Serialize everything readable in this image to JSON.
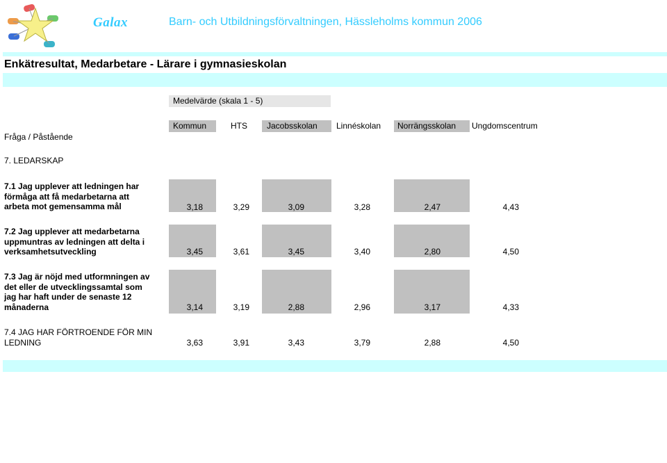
{
  "header": {
    "brand": "Galax",
    "org": "Barn- och Utbildningsförvaltningen, Hässleholms kommun 2006"
  },
  "title": "Enkätresultat, Medarbetare - Lärare i gymnasieskolan",
  "table": {
    "group_label": "Medelvärde (skala 1 - 5)",
    "row_header": "Fråga / Påstående",
    "columns": [
      "Kommun",
      "HTS",
      "Jacobsskolan",
      "Linnéskolan",
      "Norrängsskolan",
      "Ungdomscentrum"
    ],
    "section": "7. LEDARSKAP",
    "rows": [
      {
        "question": "7.1 Jag upplever att ledningen har\nförmåga att få medarbetarna att\narbeta mot gemensamma mål",
        "values": [
          "3,18",
          "3,29",
          "3,09",
          "3,28",
          "2,47",
          "4,43"
        ]
      },
      {
        "question": "7.2 Jag upplever att medarbetarna\nuppmuntras av ledningen att delta i\nverksamhetsutveckling",
        "values": [
          "3,45",
          "3,61",
          "3,45",
          "3,40",
          "2,80",
          "4,50"
        ]
      },
      {
        "question": "7.3 Jag är nöjd med utformningen av\ndet eller de utvecklingssamtal som\njag har haft under de senaste 12\nmånaderna",
        "values": [
          "3,14",
          "3,19",
          "2,88",
          "2,96",
          "3,17",
          "4,33"
        ]
      },
      {
        "question": "7.4 JAG HAR FÖRTROENDE FÖR MIN\nLEDNING",
        "values": [
          "3,63",
          "3,91",
          "3,43",
          "3,79",
          "2,88",
          "4,50"
        ]
      }
    ]
  },
  "logo_colors": [
    "#e85a5a",
    "#6bc96b",
    "#3a6fd8",
    "#3bb3c9",
    "#f2e96a"
  ]
}
